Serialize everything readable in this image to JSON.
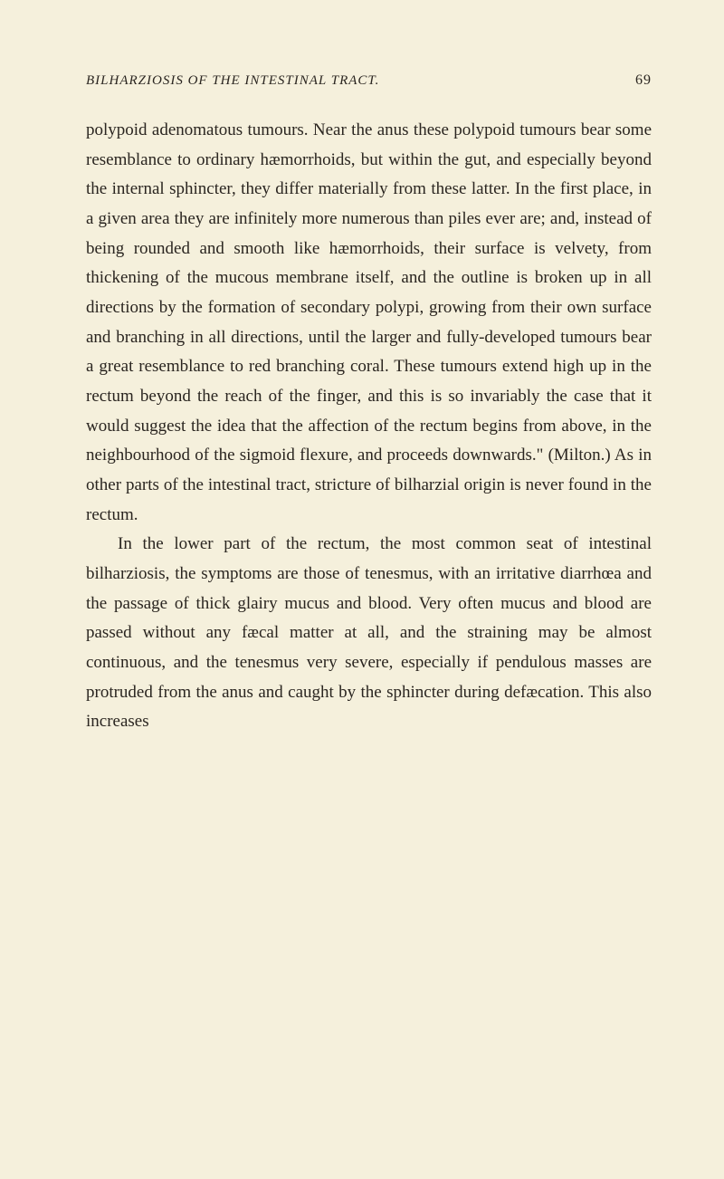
{
  "header": {
    "title": "BILHARZIOSIS OF THE INTESTINAL TRACT.",
    "page_number": "69"
  },
  "paragraphs": {
    "p1": "polypoid adenomatous tumours. Near the anus these polypoid tumours bear some resemblance to ordinary hæmorrhoids, but within the gut, and especially beyond the internal sphincter, they differ materially from these latter. In the first place, in a given area they are infinitely more numerous than piles ever are; and, instead of being rounded and smooth like hæmorrhoids, their surface is velvety, from thickening of the mucous membrane itself, and the outline is broken up in all directions by the formation of secondary polypi, growing from their own surface and branching in all directions, until the larger and fully-developed tumours bear a great resemblance to red branching coral. These tumours extend high up in the rectum beyond the reach of the finger, and this is so invariably the case that it would suggest the idea that the affection of the rectum begins from above, in the neighbourhood of the sigmoid flexure, and proceeds downwards.\" (Milton.) As in other parts of the intestinal tract, stricture of bilharzial origin is never found in the rectum.",
    "p2": "In the lower part of the rectum, the most common seat of intestinal bilharziosis, the symptoms are those of tenesmus, with an irritative diarrhœa and the passage of thick glairy mucus and blood. Very often mucus and blood are passed without any fæcal matter at all, and the straining may be almost continuous, and the tenesmus very severe, especially if pendulous masses are protruded from the anus and caught by the sphincter during defæcation. This also increases"
  }
}
